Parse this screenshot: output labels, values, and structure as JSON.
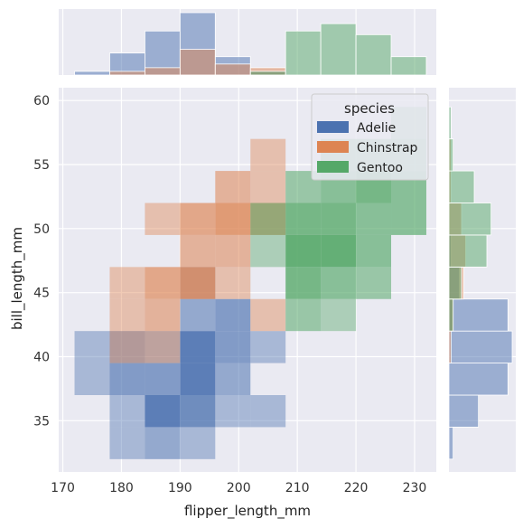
{
  "chart_data": {
    "type": "heatmap",
    "variant": "joint-histogram",
    "xlabel": "flipper_length_mm",
    "ylabel": "bill_length_mm",
    "xlim": [
      169.3,
      233.7
    ],
    "ylim": [
      31.0,
      61.0
    ],
    "xticks": [
      170,
      180,
      190,
      200,
      210,
      220,
      230
    ],
    "yticks": [
      35,
      40,
      45,
      50,
      55,
      60
    ],
    "x_bin_edges": [
      172,
      178,
      184,
      190,
      196,
      202,
      208,
      214,
      220,
      226,
      232
    ],
    "y_bin_edges": [
      32,
      34.5,
      37,
      39.5,
      42,
      44.5,
      47,
      49.5,
      52,
      54.5,
      57,
      59.5
    ],
    "grid": true,
    "background": "#eaeaf2",
    "legend": {
      "title": "species",
      "placement": "top-right",
      "entries": [
        {
          "label": "Adelie",
          "color": "#4c72b0"
        },
        {
          "label": "Chinstrap",
          "color": "#dd8452"
        },
        {
          "label": "Gentoo",
          "color": "#55a868"
        }
      ]
    },
    "series": [
      {
        "name": "Adelie",
        "color": "#4c72b0",
        "cells": [
          [
            1,
            0,
            1
          ],
          [
            2,
            0,
            2
          ],
          [
            3,
            0,
            1
          ],
          [
            1,
            1,
            1
          ],
          [
            2,
            1,
            5
          ],
          [
            3,
            1,
            4
          ],
          [
            4,
            1,
            1
          ],
          [
            5,
            1,
            1
          ],
          [
            0,
            2,
            1
          ],
          [
            1,
            2,
            3
          ],
          [
            2,
            2,
            3
          ],
          [
            3,
            2,
            5
          ],
          [
            4,
            2,
            2
          ],
          [
            0,
            3,
            1
          ],
          [
            1,
            3,
            2
          ],
          [
            2,
            3,
            1
          ],
          [
            3,
            3,
            5
          ],
          [
            4,
            3,
            3
          ],
          [
            5,
            3,
            1
          ],
          [
            3,
            4,
            2
          ],
          [
            4,
            4,
            3
          ],
          [
            3,
            5,
            1
          ]
        ],
        "marginal_x": [
          1,
          6,
          12,
          17,
          5,
          1,
          0,
          0,
          0,
          0
        ],
        "marginal_y": [
          2,
          14,
          28,
          30,
          28,
          5,
          1,
          0,
          0,
          0,
          0
        ]
      },
      {
        "name": "Chinstrap",
        "color": "#dd8452",
        "cells": [
          [
            1,
            3,
            1
          ],
          [
            2,
            3,
            1
          ],
          [
            1,
            4,
            1
          ],
          [
            2,
            4,
            2
          ],
          [
            5,
            4,
            1
          ],
          [
            1,
            5,
            1
          ],
          [
            2,
            5,
            3
          ],
          [
            3,
            5,
            4
          ],
          [
            4,
            5,
            1
          ],
          [
            3,
            6,
            2
          ],
          [
            4,
            6,
            2
          ],
          [
            2,
            7,
            1
          ],
          [
            3,
            7,
            3
          ],
          [
            4,
            7,
            4
          ],
          [
            5,
            7,
            3
          ],
          [
            4,
            8,
            2
          ],
          [
            5,
            8,
            1
          ],
          [
            5,
            9,
            1
          ],
          [
            1,
            11,
            1
          ]
        ],
        "marginal_x": [
          0,
          1,
          2,
          7,
          3,
          2,
          0,
          0,
          0,
          0
        ],
        "marginal_y": [
          0,
          0,
          0,
          1,
          2,
          7,
          8,
          6,
          1,
          1,
          0
        ]
      },
      {
        "name": "Gentoo",
        "color": "#55a868",
        "cells": [
          [
            6,
            4,
            2
          ],
          [
            7,
            4,
            1
          ],
          [
            6,
            5,
            4
          ],
          [
            7,
            5,
            3
          ],
          [
            8,
            5,
            2
          ],
          [
            5,
            6,
            1
          ],
          [
            6,
            6,
            5
          ],
          [
            7,
            6,
            5
          ],
          [
            8,
            6,
            3
          ],
          [
            5,
            7,
            2
          ],
          [
            6,
            7,
            4
          ],
          [
            7,
            7,
            4
          ],
          [
            8,
            7,
            3
          ],
          [
            9,
            7,
            3
          ],
          [
            6,
            8,
            2
          ],
          [
            7,
            8,
            3
          ],
          [
            8,
            8,
            4
          ],
          [
            9,
            8,
            3
          ],
          [
            7,
            9,
            2
          ],
          [
            8,
            9,
            2
          ],
          [
            9,
            9,
            2
          ],
          [
            9,
            10,
            1
          ]
        ],
        "marginal_x": [
          0,
          0,
          0,
          0,
          0,
          1,
          12,
          14,
          11,
          5
        ],
        "marginal_y": [
          0,
          0,
          0,
          0,
          2,
          6,
          18,
          20,
          12,
          2,
          1
        ]
      }
    ]
  }
}
